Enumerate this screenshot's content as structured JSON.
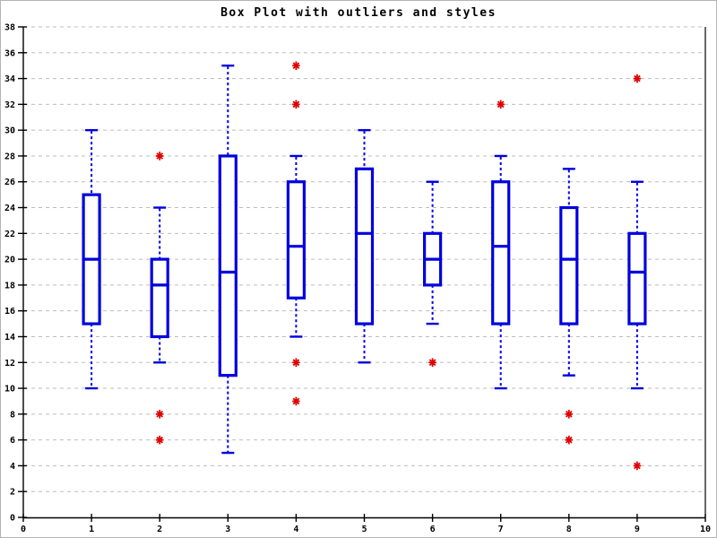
{
  "window": {
    "background": "#ffffff",
    "border_color": "#b4b4b4"
  },
  "chart_data": {
    "type": "boxplot",
    "title": "Box Plot with outliers and styles",
    "xlabel": "",
    "ylabel": "",
    "xlim": [
      0,
      10
    ],
    "ylim": [
      0,
      38
    ],
    "x_ticks": [
      0,
      1,
      2,
      3,
      4,
      5,
      6,
      7,
      8,
      9,
      10
    ],
    "y_ticks": [
      0,
      2,
      4,
      6,
      8,
      10,
      12,
      14,
      16,
      18,
      20,
      22,
      24,
      26,
      28,
      30,
      32,
      34,
      36,
      38
    ],
    "grid": "horizontal-dashed",
    "legend": "none",
    "series": [
      {
        "x": 1,
        "whisker_low": 10,
        "q1": 15,
        "median": 20,
        "q3": 25,
        "whisker_high": 30,
        "outliers": []
      },
      {
        "x": 2,
        "whisker_low": 12,
        "q1": 14,
        "median": 18,
        "q3": 20,
        "whisker_high": 24,
        "outliers": [
          28,
          8,
          6
        ]
      },
      {
        "x": 3,
        "whisker_low": 5,
        "q1": 11,
        "median": 19,
        "q3": 28,
        "whisker_high": 35,
        "outliers": []
      },
      {
        "x": 4,
        "whisker_low": 14,
        "q1": 17,
        "median": 21,
        "q3": 26,
        "whisker_high": 28,
        "outliers": [
          35,
          32,
          12,
          9
        ]
      },
      {
        "x": 5,
        "whisker_low": 12,
        "q1": 15,
        "median": 22,
        "q3": 27,
        "whisker_high": 30,
        "outliers": []
      },
      {
        "x": 6,
        "whisker_low": 15,
        "q1": 18,
        "median": 20,
        "q3": 22,
        "whisker_high": 26,
        "outliers": [
          12
        ]
      },
      {
        "x": 7,
        "whisker_low": 10,
        "q1": 15,
        "median": 21,
        "q3": 26,
        "whisker_high": 28,
        "outliers": [
          32
        ]
      },
      {
        "x": 8,
        "whisker_low": 11,
        "q1": 15,
        "median": 20,
        "q3": 24,
        "whisker_high": 27,
        "outliers": [
          8,
          6
        ]
      },
      {
        "x": 9,
        "whisker_low": 10,
        "q1": 15,
        "median": 19,
        "q3": 22,
        "whisker_high": 26,
        "outliers": [
          34,
          4
        ]
      }
    ],
    "colors": {
      "box": "#0000e0",
      "outlier": "#e00000",
      "grid": "#bdbdbd",
      "axis": "#000000",
      "title": "#000000"
    }
  }
}
